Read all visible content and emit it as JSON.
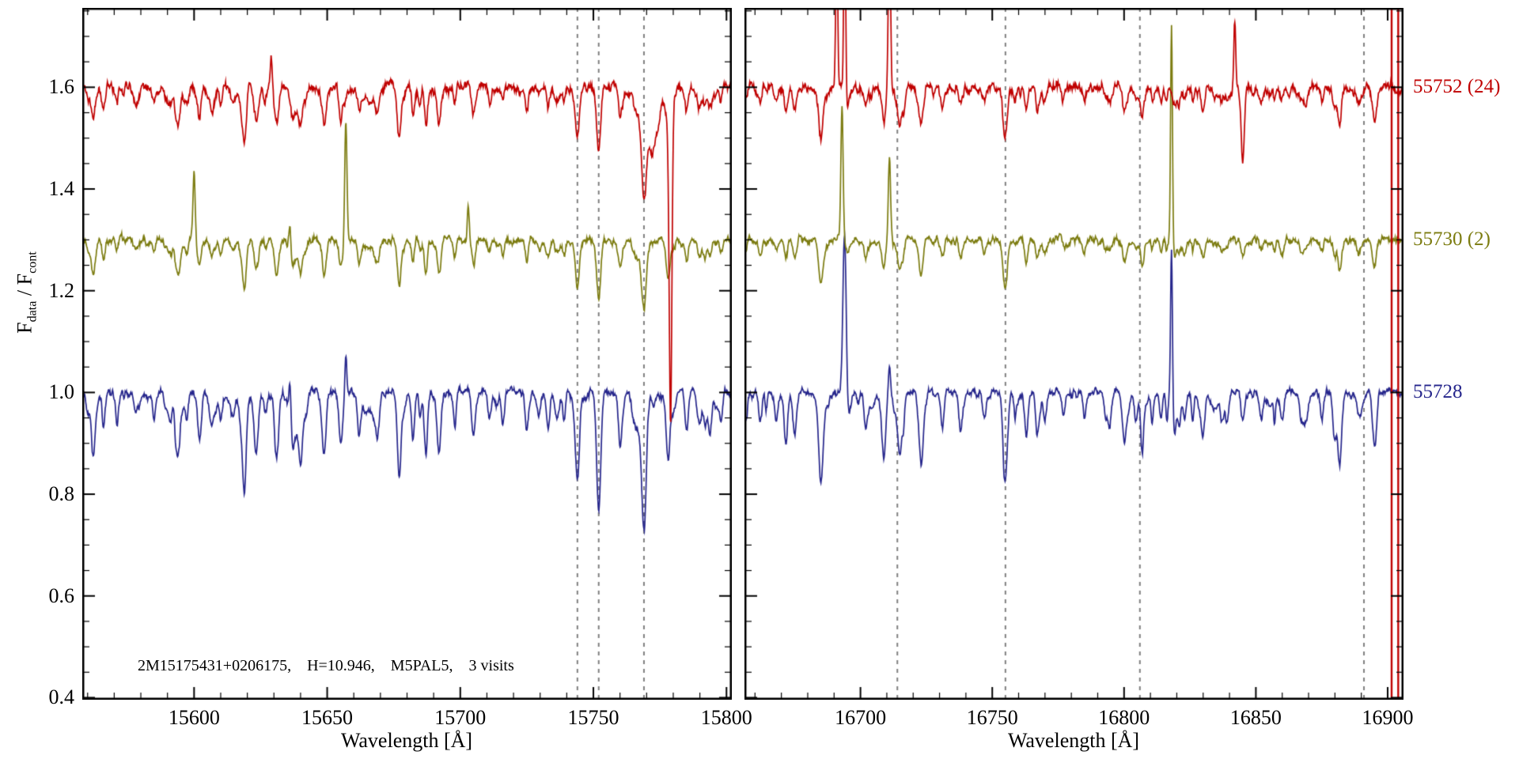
{
  "chart_data": {
    "type": "line",
    "title": "",
    "ylabel": "F_data / F_cont",
    "ylabel_parts": {
      "a": "F",
      "a_sub": "data",
      "b": " / F",
      "b_sub": "cont"
    },
    "ylim": [
      0.396,
      1.756
    ],
    "yticks": [
      0.4,
      0.6,
      0.8,
      1.0,
      1.2,
      1.4,
      1.6
    ],
    "annotation": "2M15175431+0206175,    H=10.946,    M5PAL5,    3 visits",
    "style": {
      "background": "#ffffff",
      "axes_color": "#000000",
      "guide_color": "#808080"
    },
    "series_labels": [
      {
        "text": "55752 (24)",
        "color": "#c00000",
        "offset": 1.6
      },
      {
        "text": "55730 (2)",
        "color": "#7c7c10",
        "offset": 1.3
      },
      {
        "text": "55728",
        "color": "#26268c",
        "offset": 1.0
      }
    ],
    "panels": [
      {
        "xlabel": "Wavelength [Å]",
        "xlim": [
          15558,
          15802
        ],
        "xticks": [
          15600,
          15650,
          15700,
          15750,
          15800
        ],
        "dashed_lines": [
          15744,
          15752,
          15769
        ],
        "lines": [
          [
            15562,
            0.1,
            1.0
          ],
          [
            15566,
            0.07,
            0.8
          ],
          [
            15571,
            0.06,
            0.8
          ],
          [
            15578,
            0.04,
            0.8
          ],
          [
            15585,
            0.05,
            0.9
          ],
          [
            15594,
            0.13,
            1.1
          ],
          [
            15602,
            0.1,
            1.0
          ],
          [
            15610,
            0.05,
            0.8
          ],
          [
            15619,
            0.12,
            1.0
          ],
          [
            15623,
            0.09,
            0.9
          ],
          [
            15631,
            0.13,
            1.1
          ],
          [
            15640,
            0.11,
            1.0
          ],
          [
            15649,
            0.07,
            0.9
          ],
          [
            15655,
            0.05,
            0.8
          ],
          [
            15662,
            0.08,
            0.9
          ],
          [
            15669,
            0.07,
            0.9
          ],
          [
            15677,
            0.1,
            1.0
          ],
          [
            15687,
            0.08,
            0.9
          ],
          [
            15692,
            0.12,
            1.0
          ],
          [
            15698,
            0.07,
            0.8
          ],
          [
            15705,
            0.09,
            1.0
          ],
          [
            15711,
            0.05,
            0.8
          ],
          [
            15716,
            0.06,
            0.8
          ],
          [
            15725,
            0.08,
            0.9
          ],
          [
            15733,
            0.07,
            0.9
          ],
          [
            15739,
            0.05,
            0.8
          ],
          [
            15744,
            0.17,
            1.1
          ],
          [
            15752,
            0.23,
            1.1
          ],
          [
            15760,
            0.09,
            0.9
          ],
          [
            15769,
            0.27,
            1.2
          ],
          [
            15778,
            0.12,
            1.0
          ],
          [
            15785,
            0.08,
            0.9
          ],
          [
            15792,
            0.06,
            0.9
          ],
          [
            15798,
            0.05,
            0.8
          ]
        ],
        "series": [
          {
            "name": "55752 (24)",
            "scale": 0.55,
            "sigma": 0.0075,
            "emission": [
              [
                15629,
                0.06,
                0.5
              ]
            ],
            "extra_absorption": [
              [
                15772,
                0.12,
                3.5
              ],
              [
                15779,
                0.62,
                0.7
              ]
            ]
          },
          {
            "name": "55730 (2)",
            "scale": 0.5,
            "sigma": 0.0055,
            "emission": [
              [
                15600,
                0.13,
                0.6
              ],
              [
                15636,
                0.05,
                0.5
              ],
              [
                15657,
                0.24,
                0.6
              ],
              [
                15703,
                0.07,
                0.5
              ]
            ],
            "extra_absorption": []
          },
          {
            "name": "55728",
            "scale": 1.0,
            "sigma": 0.006,
            "emission": [
              [
                15636,
                0.06,
                0.5
              ],
              [
                15657,
                0.08,
                0.5
              ]
            ],
            "extra_absorption": []
          }
        ]
      },
      {
        "xlabel": "Wavelength [Å]",
        "xlim": [
          16656,
          16906
        ],
        "xticks": [
          16700,
          16750,
          16800,
          16850,
          16900
        ],
        "dashed_lines": [
          16714,
          16755,
          16806,
          16891
        ],
        "edge_lines": [
          16901.5,
          16904
        ],
        "lines": [
          [
            16662,
            0.06,
            0.9
          ],
          [
            16668,
            0.05,
            0.9
          ],
          [
            16675,
            0.08,
            1.0
          ],
          [
            16685,
            0.17,
            1.2
          ],
          [
            16702,
            0.06,
            0.9
          ],
          [
            16709,
            0.05,
            0.8
          ],
          [
            16715,
            0.1,
            1.0
          ],
          [
            16723,
            0.13,
            1.1
          ],
          [
            16731,
            0.06,
            0.9
          ],
          [
            16738,
            0.07,
            0.9
          ],
          [
            16747,
            0.05,
            0.9
          ],
          [
            16755,
            0.16,
            1.2
          ],
          [
            16763,
            0.06,
            0.9
          ],
          [
            16770,
            0.05,
            0.9
          ],
          [
            16777,
            0.04,
            0.8
          ],
          [
            16785,
            0.05,
            0.9
          ],
          [
            16793,
            0.04,
            0.8
          ],
          [
            16800,
            0.05,
            0.9
          ],
          [
            16807,
            0.06,
            0.9
          ],
          [
            16814,
            0.05,
            0.8
          ],
          [
            16823,
            0.05,
            0.8
          ],
          [
            16830,
            0.04,
            0.8
          ],
          [
            16837,
            0.05,
            0.9
          ],
          [
            16845,
            0.06,
            0.9
          ],
          [
            16852,
            0.04,
            0.8
          ],
          [
            16860,
            0.05,
            0.9
          ],
          [
            16867,
            0.04,
            0.8
          ],
          [
            16875,
            0.05,
            0.9
          ],
          [
            16882,
            0.06,
            0.9
          ],
          [
            16889,
            0.05,
            0.9
          ],
          [
            16895,
            0.11,
            1.1
          ]
        ],
        "series": [
          {
            "name": "55752 (24)",
            "scale": 0.55,
            "sigma": 0.0075,
            "emission": [
              [
                16691,
                0.32,
                0.5
              ],
              [
                16694,
                0.37,
                0.5
              ],
              [
                16711,
                0.34,
                0.6
              ],
              [
                16842,
                0.13,
                0.5
              ]
            ],
            "extra_absorption": [
              [
                16845,
                0.12,
                0.8
              ]
            ]
          },
          {
            "name": "55730 (2)",
            "scale": 0.5,
            "sigma": 0.0055,
            "emission": [
              [
                16693,
                0.26,
                0.6
              ],
              [
                16711,
                0.16,
                0.6
              ],
              [
                16818,
                0.43,
                0.5
              ]
            ],
            "extra_absorption": []
          },
          {
            "name": "55728",
            "scale": 1.0,
            "sigma": 0.006,
            "emission": [
              [
                16694,
                0.34,
                0.9
              ],
              [
                16711,
                0.06,
                0.6
              ],
              [
                16818,
                0.3,
                0.5
              ]
            ],
            "extra_absorption": []
          }
        ]
      }
    ]
  }
}
